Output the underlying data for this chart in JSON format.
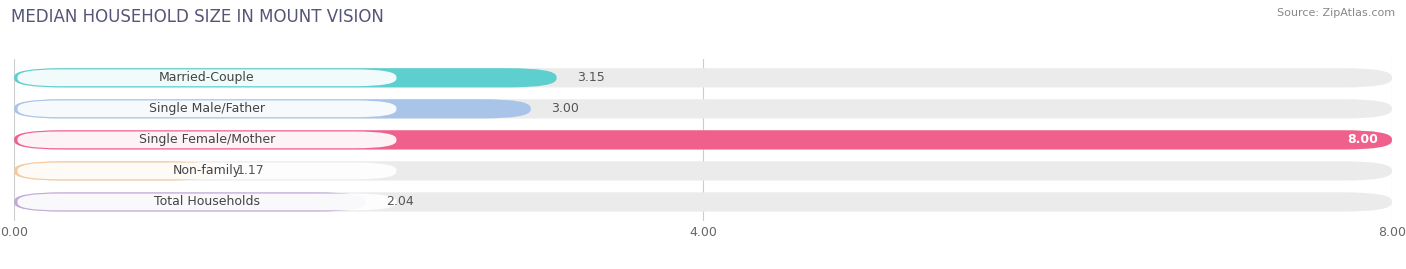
{
  "title": "MEDIAN HOUSEHOLD SIZE IN MOUNT VISION",
  "source": "Source: ZipAtlas.com",
  "categories": [
    "Married-Couple",
    "Single Male/Father",
    "Single Female/Mother",
    "Non-family",
    "Total Households"
  ],
  "values": [
    3.15,
    3.0,
    8.0,
    1.17,
    2.04
  ],
  "value_labels": [
    "3.15",
    "3.00",
    "8.00",
    "1.17",
    "2.04"
  ],
  "bar_colors": [
    "#5ecfcf",
    "#a8c4e8",
    "#f0608c",
    "#f5c89a",
    "#c0aad8"
  ],
  "bar_bg_color": "#ebebeb",
  "value_inside": [
    false,
    false,
    true,
    false,
    false
  ],
  "xlim": [
    0,
    8.0
  ],
  "xticks": [
    0.0,
    4.0,
    8.0
  ],
  "xtick_labels": [
    "0.00",
    "4.00",
    "8.00"
  ],
  "title_fontsize": 12,
  "label_fontsize": 9,
  "value_fontsize": 9,
  "background_color": "#ffffff"
}
